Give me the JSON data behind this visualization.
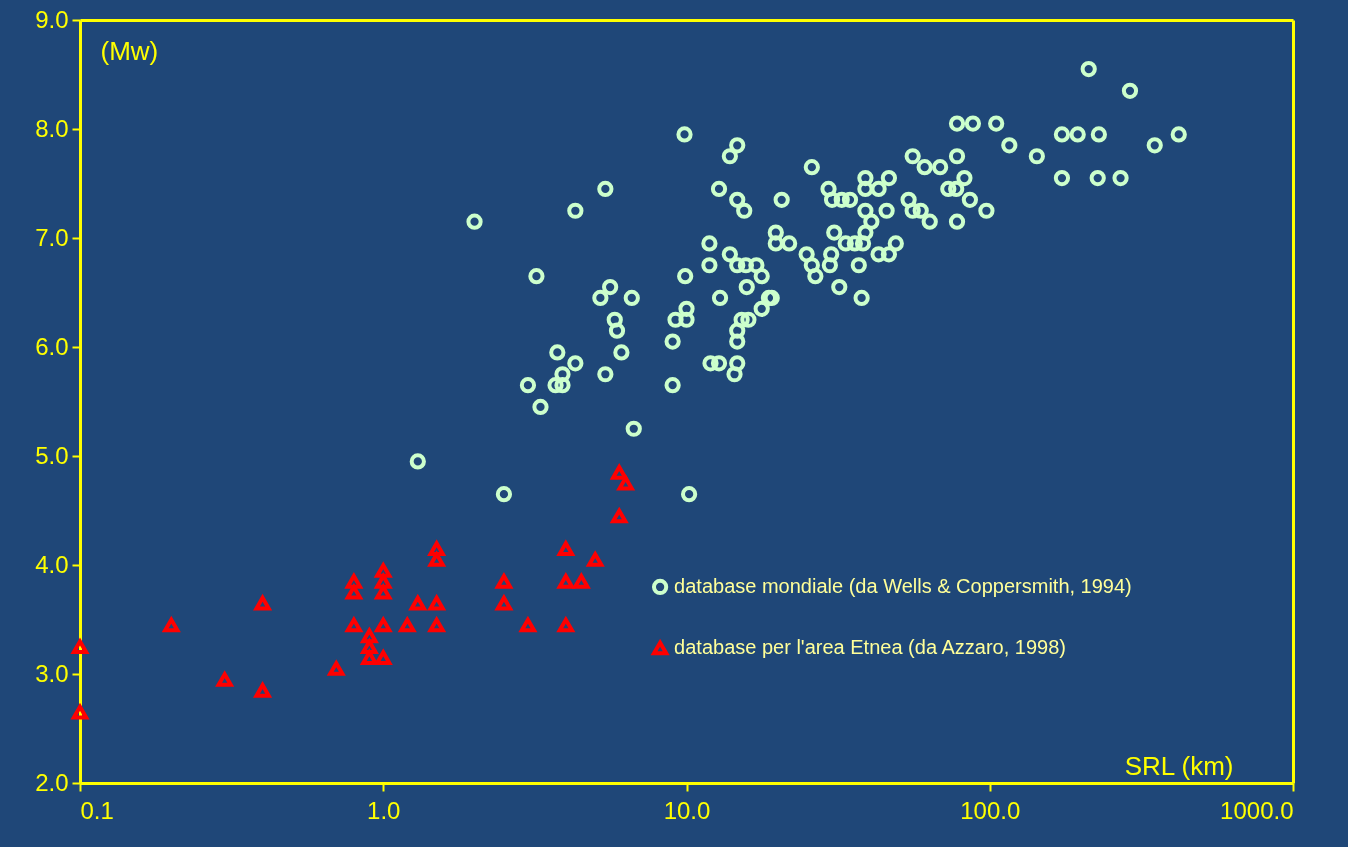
{
  "chart_data": {
    "type": "scatter",
    "xlabel": "SRL (km)",
    "ylabel": "(Mw)",
    "log": "x",
    "legend": "right",
    "grid": false,
    "xlim": [
      0.1,
      1000
    ],
    "xticks": [
      {
        "value": 0.1,
        "label": "0.1"
      },
      {
        "value": 1,
        "label": "1.0"
      },
      {
        "value": 10,
        "label": "10.0"
      },
      {
        "value": 100,
        "label": "100.0"
      },
      {
        "value": 1000,
        "label": "1000.0"
      }
    ],
    "ylim": [
      2,
      9
    ],
    "yticks": [
      {
        "value": 2,
        "label": "2.0"
      },
      {
        "value": 3,
        "label": "3.0"
      },
      {
        "value": 4,
        "label": "4.0"
      },
      {
        "value": 5,
        "label": "5.0"
      },
      {
        "value": 6,
        "label": "6.0"
      },
      {
        "value": 7,
        "label": "7.0"
      },
      {
        "value": 8,
        "label": "8.0"
      },
      {
        "value": 9,
        "label": "9.0"
      }
    ],
    "series": [
      {
        "name": "database mondiale (da Wells & Coppersmith, 1994)",
        "color": "#ccffcc",
        "marker": "circle",
        "x": [
          1.3,
          2,
          2.5,
          3,
          3.2,
          3.3,
          3.7,
          3.9,
          3.75,
          3.9,
          4.3,
          4.3,
          5.4,
          5.2,
          5.4,
          5.6,
          5.8,
          5.9,
          6.1,
          6.6,
          6.7,
          9,
          9,
          9.2,
          9.85,
          9.9,
          10,
          10,
          10.2,
          11.9,
          11.9,
          12,
          12.8,
          12.8,
          12.9,
          13.9,
          13.9,
          14.4,
          14.7,
          14.7,
          14.7,
          14.7,
          14.7,
          14.7,
          15.5,
          15.7,
          15.8,
          15.2,
          16,
          17,
          17.7,
          17.7,
          18.7,
          19.1,
          19.7,
          19.7,
          20.6,
          21.8,
          24.9,
          25.9,
          25.9,
          26.6,
          29.4,
          30.2,
          30.7,
          29.7,
          30,
          31.9,
          32.5,
          33.5,
          34.6,
          35.9,
          37,
          37.8,
          38.2,
          38.9,
          38.9,
          38.9,
          38.9,
          40.7,
          43,
          43,
          45.7,
          46.5,
          46.5,
          49,
          54,
          55.7,
          55.7,
          59.2,
          61,
          63.4,
          68.6,
          73,
          77.5,
          78,
          78,
          78,
          82.5,
          86,
          88,
          97.5,
          105,
          116,
          143,
          173,
          173,
          195,
          212,
          229,
          227,
          270,
          290,
          350,
          420
        ],
        "values": [
          4.95,
          7.15,
          4.65,
          5.65,
          6.65,
          5.45,
          5.65,
          5.65,
          5.95,
          5.75,
          5.85,
          7.25,
          7.45,
          6.45,
          5.75,
          6.55,
          6.25,
          6.15,
          5.95,
          6.45,
          5.25,
          6.05,
          5.65,
          6.25,
          7.95,
          6.65,
          6.35,
          6.25,
          4.65,
          6.95,
          6.75,
          5.85,
          5.85,
          7.45,
          6.45,
          7.75,
          6.85,
          5.75,
          7.85,
          7.35,
          6.75,
          6.15,
          6.05,
          5.85,
          7.25,
          6.75,
          6.55,
          6.25,
          6.25,
          6.75,
          6.65,
          6.35,
          6.45,
          6.45,
          7.05,
          6.95,
          7.35,
          6.95,
          6.85,
          6.75,
          7.65,
          6.65,
          7.45,
          7.35,
          7.05,
          6.75,
          6.85,
          6.55,
          7.35,
          6.95,
          7.35,
          6.95,
          6.75,
          6.45,
          6.95,
          7.55,
          7.45,
          7.25,
          7.05,
          7.15,
          7.45,
          6.85,
          7.25,
          7.55,
          6.85,
          6.95,
          7.35,
          7.25,
          7.75,
          7.25,
          7.65,
          7.15,
          7.65,
          7.45,
          7.45,
          8.05,
          7.75,
          7.15,
          7.55,
          7.35,
          8.05,
          7.25,
          8.05,
          7.85,
          7.75,
          7.95,
          7.55,
          7.95,
          8.55,
          7.95,
          7.55,
          7.55,
          8.35,
          7.85,
          7.95
        ]
      },
      {
        "name": "database per l'area Etnea (da Azzaro, 1998)",
        "color": "#ff0000",
        "marker": "triangle",
        "x": [
          0.1,
          0.1,
          0.2,
          0.3,
          0.4,
          0.4,
          0.7,
          0.8,
          0.8,
          0.8,
          0.9,
          0.9,
          0.9,
          1,
          1,
          1,
          1,
          1,
          1.2,
          1.3,
          1.5,
          1.5,
          1.5,
          1.5,
          2.5,
          2.5,
          3,
          4,
          4,
          4,
          4.5,
          5,
          6,
          6,
          6.3
        ],
        "values": [
          3.25,
          2.65,
          3.45,
          2.95,
          3.65,
          2.85,
          3.05,
          3.85,
          3.75,
          3.45,
          3.35,
          3.25,
          3.15,
          3.95,
          3.85,
          3.75,
          3.45,
          3.15,
          3.45,
          3.65,
          4.15,
          4.05,
          3.65,
          3.45,
          3.85,
          3.65,
          3.45,
          4.15,
          3.85,
          3.45,
          3.85,
          4.05,
          4.85,
          4.45,
          4.75
        ]
      }
    ]
  }
}
